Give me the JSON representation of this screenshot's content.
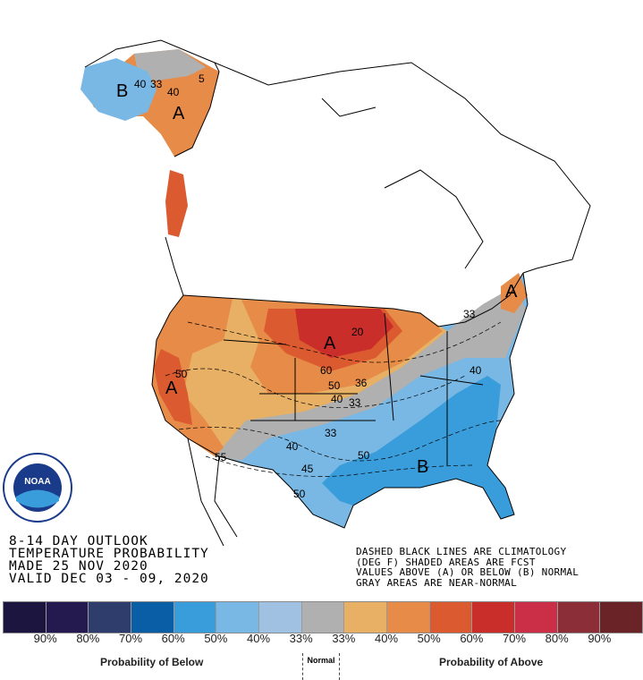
{
  "title_lines": [
    "8-14 DAY OUTLOOK",
    "TEMPERATURE PROBABILITY",
    "MADE  25 NOV 2020",
    "VALID  DEC 03 - 09, 2020"
  ],
  "notes": [
    "DASHED BLACK LINES ARE CLIMATOLOGY",
    "(DEG F) SHADED AREAS ARE FCST",
    "VALUES ABOVE (A) OR BELOW (B) NORMAL",
    "GRAY AREAS ARE NEAR-NORMAL"
  ],
  "logo": "NOAA",
  "map_labels": [
    "A",
    "A",
    "A",
    "A",
    "B",
    "B",
    "20",
    "60",
    "50",
    "40",
    "36",
    "33",
    "33",
    "40",
    "50",
    "33",
    "40",
    "45",
    "50",
    "55",
    "50",
    "40",
    "33",
    "40",
    "5"
  ],
  "legend": {
    "colors": [
      "#1c1540",
      "#251a50",
      "#2e3d6b",
      "#0a5ea6",
      "#3a9ddb",
      "#79b8e4",
      "#a0c1e2",
      "#b0b0b0",
      "#e8b064",
      "#e68b48",
      "#db5a30",
      "#c92e2a",
      "#cb2f48",
      "#8b2e38",
      "#6a2428"
    ],
    "ticks": [
      "90%",
      "80%",
      "70%",
      "60%",
      "50%",
      "40%",
      "33%",
      "33%",
      "40%",
      "50%",
      "60%",
      "70%",
      "80%",
      "90%"
    ],
    "below_label": "Probability of Below",
    "normal_label": "Normal",
    "above_label": "Probability of Above"
  }
}
